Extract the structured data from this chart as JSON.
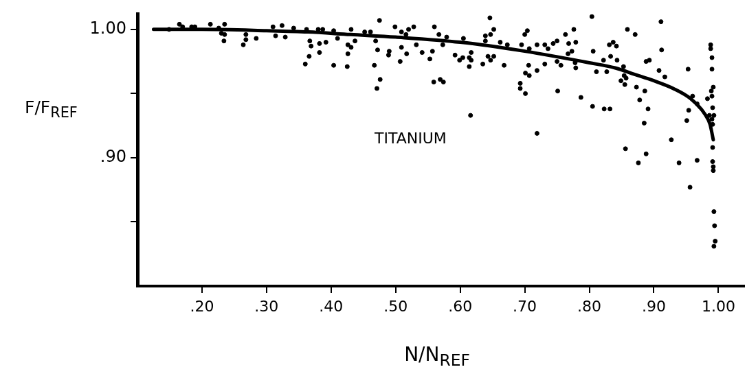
{
  "chart_data": {
    "type": "scatter",
    "xlabel": "N/N$_{REF}$",
    "ylabel": "F/F$_{REF}$",
    "annotations": [
      "TITANIUM"
    ],
    "xlim": [
      0.1,
      1.04
    ],
    "ylim": [
      0.8,
      1.012
    ],
    "xticks": [
      {
        "value": 0.2,
        "label": ".20"
      },
      {
        "value": 0.3,
        "label": ".30"
      },
      {
        "value": 0.4,
        "label": ".40"
      },
      {
        "value": 0.5,
        "label": ".50"
      },
      {
        "value": 0.6,
        "label": ".60"
      },
      {
        "value": 0.7,
        "label": ".70"
      },
      {
        "value": 0.8,
        "label": ".80"
      },
      {
        "value": 0.9,
        "label": ".90"
      },
      {
        "value": 1.0,
        "label": "1.00"
      }
    ],
    "yticks": [
      {
        "value": 0.85,
        "label": null
      },
      {
        "value": 0.9,
        "label": ".90"
      },
      {
        "value": 0.95,
        "label": null
      },
      {
        "value": 1.0,
        "label": "1.00"
      }
    ],
    "series": [
      {
        "type": "scatter",
        "color": "#000000",
        "marker": "circle",
        "x": [
          0.149,
          0.165,
          0.17,
          0.184,
          0.189,
          0.213,
          0.226,
          0.23,
          0.234,
          0.235,
          0.235,
          0.264,
          0.268,
          0.268,
          0.284,
          0.31,
          0.314,
          0.324,
          0.329,
          0.342,
          0.36,
          0.362,
          0.366,
          0.367,
          0.369,
          0.38,
          0.382,
          0.382,
          0.387,
          0.392,
          0.404,
          0.404,
          0.41,
          0.425,
          0.426,
          0.426,
          0.431,
          0.431,
          0.437,
          0.452,
          0.461,
          0.467,
          0.469,
          0.471,
          0.472,
          0.475,
          0.476,
          0.489,
          0.49,
          0.499,
          0.507,
          0.509,
          0.509,
          0.516,
          0.517,
          0.52,
          0.528,
          0.532,
          0.541,
          0.553,
          0.557,
          0.559,
          0.56,
          0.567,
          0.569,
          0.573,
          0.574,
          0.579,
          0.592,
          0.599,
          0.604,
          0.605,
          0.614,
          0.614,
          0.616,
          0.617,
          0.617,
          0.635,
          0.639,
          0.639,
          0.643,
          0.646,
          0.647,
          0.647,
          0.652,
          0.652,
          0.662,
          0.668,
          0.673,
          0.693,
          0.693,
          0.695,
          0.7,
          0.701,
          0.701,
          0.704,
          0.706,
          0.707,
          0.707,
          0.719,
          0.719,
          0.719,
          0.731,
          0.731,
          0.736,
          0.744,
          0.75,
          0.75,
          0.751,
          0.756,
          0.763,
          0.767,
          0.768,
          0.773,
          0.776,
          0.778,
          0.779,
          0.779,
          0.787,
          0.804,
          0.805,
          0.806,
          0.811,
          0.822,
          0.823,
          0.827,
          0.831,
          0.832,
          0.833,
          0.837,
          0.842,
          0.843,
          0.849,
          0.853,
          0.854,
          0.855,
          0.856,
          0.857,
          0.859,
          0.871,
          0.873,
          0.876,
          0.878,
          0.885,
          0.886,
          0.888,
          0.888,
          0.891,
          0.893,
          0.908,
          0.911,
          0.912,
          0.917,
          0.927,
          0.939,
          0.951,
          0.953,
          0.954,
          0.956,
          0.96,
          0.967,
          0.967,
          0.983,
          0.986,
          0.988,
          0.988,
          0.989,
          0.99,
          0.99,
          0.99,
          0.99,
          0.991,
          0.991,
          0.991,
          0.991,
          0.992,
          0.992,
          0.992,
          0.993,
          0.993,
          0.993,
          0.994,
          0.995
        ],
        "values": [
          1.0,
          1.004,
          1.002,
          1.002,
          1.002,
          1.004,
          1.001,
          0.997,
          0.991,
          1.004,
          0.996,
          0.988,
          0.996,
          0.992,
          0.993,
          1.002,
          0.995,
          1.003,
          0.994,
          1.001,
          0.973,
          1.0,
          0.979,
          0.991,
          0.987,
          1.0,
          0.989,
          0.982,
          1.0,
          0.99,
          0.999,
          0.972,
          0.993,
          0.971,
          0.988,
          0.981,
          0.986,
          1.0,
          0.991,
          0.998,
          0.998,
          0.972,
          0.991,
          0.954,
          0.984,
          1.007,
          0.961,
          0.98,
          0.983,
          1.002,
          0.975,
          0.998,
          0.986,
          0.996,
          0.981,
          1.0,
          1.002,
          0.988,
          0.982,
          0.977,
          0.983,
          0.959,
          1.002,
          0.996,
          0.961,
          0.988,
          0.959,
          0.994,
          0.98,
          0.976,
          0.978,
          0.993,
          0.978,
          0.971,
          0.933,
          0.976,
          0.982,
          0.973,
          0.991,
          0.995,
          0.979,
          1.009,
          0.976,
          0.996,
          0.979,
          1.0,
          0.99,
          0.972,
          0.988,
          0.958,
          0.954,
          0.988,
          0.996,
          0.966,
          0.95,
          0.999,
          0.972,
          0.985,
          0.964,
          0.988,
          0.968,
          0.919,
          0.973,
          0.988,
          0.985,
          0.989,
          0.991,
          0.975,
          0.952,
          0.972,
          0.996,
          0.981,
          0.989,
          0.983,
          1.0,
          0.974,
          0.99,
          0.97,
          0.947,
          1.01,
          0.94,
          0.983,
          0.967,
          0.976,
          0.938,
          0.967,
          0.988,
          0.938,
          0.979,
          0.99,
          0.987,
          0.976,
          0.96,
          0.971,
          0.964,
          0.957,
          0.907,
          0.962,
          1.0,
          0.996,
          0.955,
          0.896,
          0.945,
          0.927,
          0.952,
          0.975,
          0.903,
          0.938,
          0.976,
          0.968,
          1.006,
          0.984,
          0.963,
          0.914,
          0.896,
          0.929,
          0.969,
          0.937,
          0.877,
          0.948,
          0.942,
          0.898,
          0.946,
          0.933,
          0.988,
          0.985,
          0.952,
          0.978,
          0.969,
          0.948,
          0.93,
          0.939,
          0.926,
          0.908,
          0.897,
          0.955,
          0.893,
          0.89,
          0.933,
          0.858,
          0.831,
          0.847,
          0.835
        ]
      },
      {
        "type": "line",
        "color": "#000000",
        "marker": "none",
        "line_style": "solid",
        "x": [
          0.125,
          0.2,
          0.3,
          0.364,
          0.43,
          0.5,
          0.6,
          0.7,
          0.8,
          0.84,
          0.87,
          0.9,
          0.93,
          0.957,
          0.979,
          0.987,
          0.992
        ],
        "values": [
          1.0,
          1.0,
          0.999,
          0.998,
          0.996,
          0.994,
          0.99,
          0.983,
          0.974,
          0.97,
          0.965,
          0.96,
          0.954,
          0.946,
          0.934,
          0.926,
          0.914
        ]
      }
    ]
  }
}
